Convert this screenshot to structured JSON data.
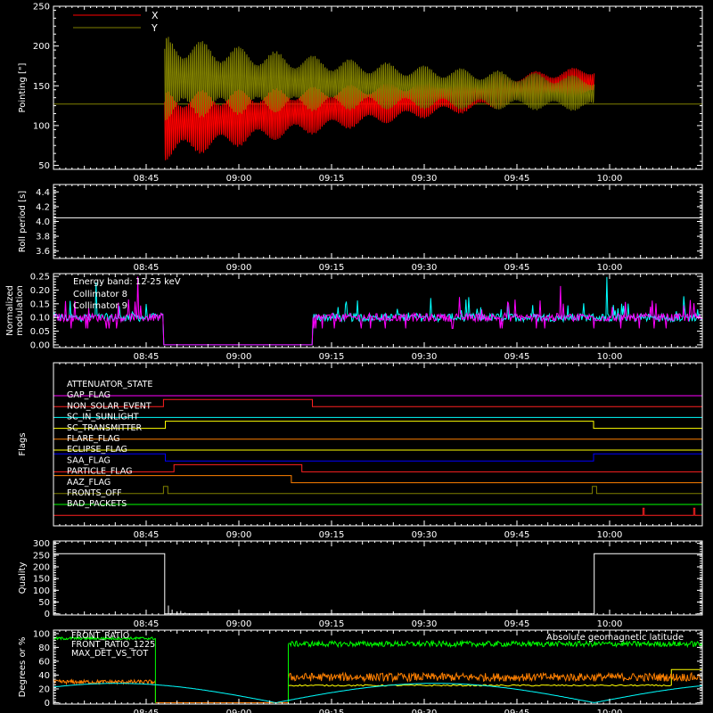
{
  "time_axis": {
    "tick_labels": [
      "08:45",
      "09:00",
      "09:15",
      "09:30",
      "09:45",
      "10:00"
    ],
    "ticks_min": [
      15,
      30,
      45,
      60,
      75,
      90
    ],
    "range_min": [
      0,
      105
    ],
    "origin_clock": "08:30"
  },
  "chart_data": [
    {
      "type": "line",
      "id": "pointing",
      "ylabel": "Pointing [\"]",
      "ylim": [
        45,
        250
      ],
      "yticks": [
        50,
        100,
        150,
        200,
        250
      ],
      "legend": [
        {
          "name": "X",
          "color": "#ff0000"
        },
        {
          "name": "Y",
          "color": "#808000"
        }
      ],
      "reference_line": {
        "value": 127,
        "color": "#808000"
      },
      "series": [
        {
          "name": "X",
          "color": "#ff0000",
          "t_start": 18.0,
          "t_end": 87.5,
          "center_start": 100,
          "center_end": 155,
          "amp_start": 45,
          "amp_end": 17,
          "period_min": 1.3
        },
        {
          "name": "Y",
          "color": "#808000",
          "t_start": 18.0,
          "t_end": 87.5,
          "center_start": 160,
          "center_end": 140,
          "amp_start": 55,
          "amp_end": 18,
          "period_min": 1.3
        }
      ]
    },
    {
      "type": "line",
      "id": "roll",
      "ylabel": "Roll period [s]",
      "ylim": [
        3.5,
        4.5
      ],
      "yticks": [
        3.6,
        3.8,
        4.0,
        4.2,
        4.4
      ],
      "series": [
        {
          "name": "",
          "color": "#ffffff",
          "value": 4.05
        }
      ]
    },
    {
      "type": "line",
      "id": "modulation",
      "ylabel": "Normalized modulation",
      "ylim": [
        -0.01,
        0.26
      ],
      "yticks": [
        0.0,
        0.05,
        0.1,
        0.15,
        0.2,
        0.25
      ],
      "annotation": "Energy band: 12-25 keV",
      "legend": [
        {
          "name": "Collimator 8",
          "color": "#00ffff"
        },
        {
          "name": "Collimator 9",
          "color": "#ff00ff"
        }
      ],
      "gap": [
        17.7,
        42.0
      ],
      "baseline": 0.1,
      "series": [
        {
          "name": "Collimator 8",
          "color": "#00ffff"
        },
        {
          "name": "Collimator 9",
          "color": "#ff00ff"
        }
      ]
    },
    {
      "type": "line",
      "id": "flags",
      "ylabel": "Flags",
      "flags": [
        {
          "name": "ATTENUATOR_STATE",
          "color": "#ff00ff",
          "up": []
        },
        {
          "name": "GAP_FLAG",
          "color": "#ff2020",
          "up": [
            [
              17.8,
              41.9
            ]
          ]
        },
        {
          "name": "NON_SOLAR_EVENT",
          "color": "#00ffff",
          "up": []
        },
        {
          "name": "SC_IN_SUNLIGHT",
          "color": "#ffff00",
          "up": [
            [
              18.1,
              87.4
            ]
          ]
        },
        {
          "name": "SC_TRANSMITTER",
          "color": "#ff8000",
          "up": []
        },
        {
          "name": "FLARE_FLAG",
          "color": "#ffff00",
          "up": []
        },
        {
          "name": "ECLIPSE_FLAG",
          "color": "#0000ff",
          "up": [
            [
              0,
              18.1
            ],
            [
              87.4,
              105
            ]
          ]
        },
        {
          "name": "SAA_FLAG",
          "color": "#ff2020",
          "up": [
            [
              19.5,
              40.2
            ]
          ]
        },
        {
          "name": "PARTICLE_FLAG",
          "color": "#ff8000",
          "up": [
            [
              0,
              38.5
            ]
          ]
        },
        {
          "name": "AAZ_FLAG",
          "color": "#808000",
          "up": [
            [
              17.8,
              18.5
            ],
            [
              87.2,
              87.9
            ]
          ]
        },
        {
          "name": "FRONTS_OFF",
          "color": "#00ff00",
          "up": []
        },
        {
          "name": "BAD_PACKETS",
          "color": "#ff2020",
          "up": [
            [
              95.4,
              95.6
            ],
            [
              103.6,
              103.8
            ]
          ]
        }
      ]
    },
    {
      "type": "line",
      "id": "quality",
      "ylabel": "Quality",
      "ylim": [
        -5,
        310
      ],
      "yticks": [
        0,
        50,
        100,
        150,
        200,
        250,
        300
      ],
      "series": [
        {
          "name": "",
          "color": "#ffffff",
          "high": 256,
          "low_start": 18.0,
          "low_end": 87.5
        }
      ]
    },
    {
      "type": "line",
      "id": "degrees",
      "ylabel": "Degrees or %",
      "ylim": [
        -2,
        105
      ],
      "yticks": [
        0,
        20,
        40,
        60,
        80,
        100
      ],
      "legend": [
        {
          "name": "FRONT_RATIO",
          "color": "#00ff00"
        },
        {
          "name": "FRONT_RATIO_1225",
          "color": "#00ff00"
        },
        {
          "name": "MAX_DET_VS_TOT",
          "color": "#ff8000"
        }
      ],
      "right_label": {
        "text": "Absolute geomagnetic latitude",
        "color": "#00ffff"
      },
      "series": [
        {
          "name": "FRONT_RATIO",
          "color": "#00ff00",
          "level_pre": 93,
          "level_post": 85,
          "gap": [
            16.5,
            38.0
          ]
        },
        {
          "name": "MAX_DET_VS_TOT",
          "color": "#ff8000",
          "level_pre": 30,
          "level_post": 37,
          "gap": [
            16.5,
            38.0
          ]
        },
        {
          "name": "yellow",
          "color": "#ffff00",
          "level": 25,
          "start": 38.0
        },
        {
          "name": "Absolute geomagnetic latitude",
          "color": "#00ffff",
          "minima_min": [
            36.0,
            87.5
          ],
          "max": 28
        }
      ]
    }
  ]
}
